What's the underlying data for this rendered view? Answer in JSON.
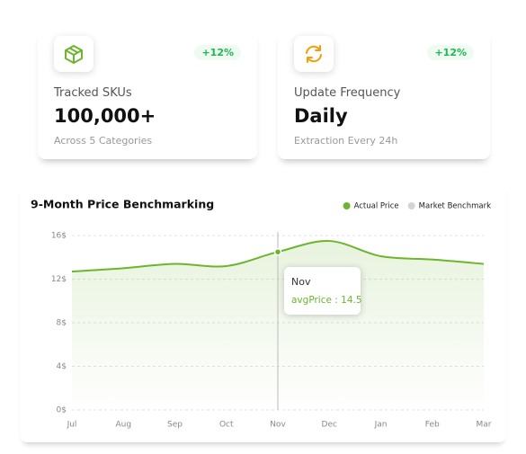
{
  "cards": [
    {
      "badge": "+12%",
      "label": "Tracked SKUs",
      "value": "100,000+",
      "note": "Across 5 Categories"
    },
    {
      "badge": "+12%",
      "label": "Update Frequency",
      "value": "Daily",
      "note": "Extraction Every 24h"
    }
  ],
  "chart_data": {
    "type": "line",
    "title": "9-Month Price Benchmarking",
    "categories": [
      "Jul",
      "Aug",
      "Sep",
      "Oct",
      "Nov",
      "Dec",
      "Jan",
      "Feb",
      "Mar"
    ],
    "series": [
      {
        "name": "Actual Price",
        "color": "#6cb52d",
        "values": [
          12.7,
          13.0,
          13.4,
          13.2,
          14.5,
          15.5,
          14.1,
          13.8,
          13.4
        ]
      },
      {
        "name": "Market Benchmark",
        "color": "#d4d4d8",
        "values": [
          null,
          null,
          null,
          null,
          null,
          null,
          null,
          null,
          null
        ]
      }
    ],
    "ylim": [
      0,
      16
    ],
    "yticks": [
      {
        "value": 0,
        "label": "0$"
      },
      {
        "value": 4,
        "label": "4$"
      },
      {
        "value": 8,
        "label": "8$"
      },
      {
        "value": 12,
        "label": "12$"
      },
      {
        "value": 16,
        "label": "16$"
      }
    ],
    "grid": true,
    "legend": "top-right",
    "tooltip": {
      "index": 4,
      "text": "avgPrice : 14.5"
    }
  }
}
